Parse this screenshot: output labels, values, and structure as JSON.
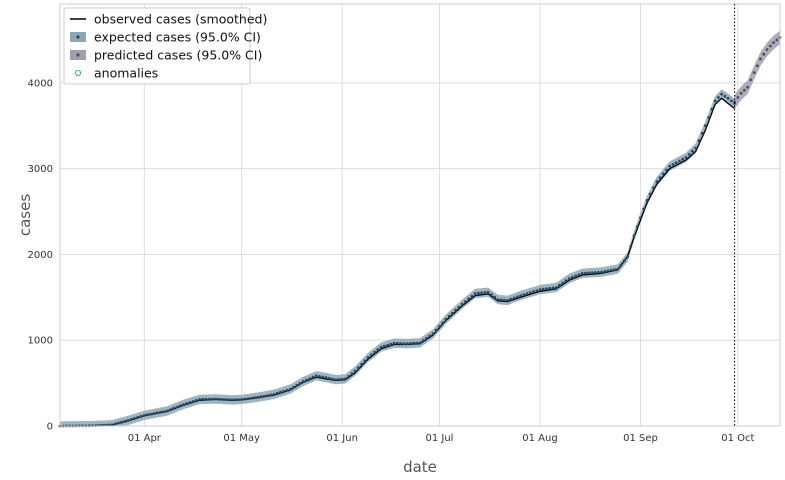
{
  "chart_data": {
    "type": "line",
    "xlabel": "date",
    "ylabel": "cases",
    "xlim": [
      "2020-03-06",
      "2020-10-14"
    ],
    "ylim": [
      0,
      4920
    ],
    "x_ticks": [
      {
        "date": "2020-04-01",
        "label": "01 Apr"
      },
      {
        "date": "2020-05-01",
        "label": "01 May"
      },
      {
        "date": "2020-06-01",
        "label": "01 Jun"
      },
      {
        "date": "2020-07-01",
        "label": "01 Jul"
      },
      {
        "date": "2020-08-01",
        "label": "01 Aug"
      },
      {
        "date": "2020-09-01",
        "label": "01 Sep"
      },
      {
        "date": "2020-10-01",
        "label": "01 Oct"
      }
    ],
    "y_ticks": [
      0,
      1000,
      2000,
      3000,
      4000
    ],
    "grid": true,
    "legend_position": "top-left",
    "legend": [
      {
        "label": "observed cases (smoothed)",
        "style": "line",
        "color": "#000000"
      },
      {
        "label": "expected cases (95.0% CI)",
        "style": "band",
        "color": "#8fa8b8",
        "marker": "#2c4a5c"
      },
      {
        "label": "predicted cases (95.0% CI)",
        "style": "band",
        "color": "#9ea0ad",
        "marker": "#6b3f60"
      },
      {
        "label": "anomalies",
        "style": "circle",
        "color": "#4aa3a3"
      }
    ],
    "cutoff_date": "2020-09-30",
    "series": [
      {
        "name": "observed cases (smoothed)",
        "color": "#000000",
        "points": [
          [
            "2020-03-06",
            0
          ],
          [
            "2020-03-15",
            2
          ],
          [
            "2020-03-22",
            12
          ],
          [
            "2020-03-27",
            60
          ],
          [
            "2020-04-01",
            120
          ],
          [
            "2020-04-08",
            170
          ],
          [
            "2020-04-13",
            240
          ],
          [
            "2020-04-18",
            300
          ],
          [
            "2020-04-23",
            310
          ],
          [
            "2020-04-28",
            300
          ],
          [
            "2020-05-01",
            305
          ],
          [
            "2020-05-06",
            330
          ],
          [
            "2020-05-11",
            360
          ],
          [
            "2020-05-16",
            420
          ],
          [
            "2020-05-20",
            510
          ],
          [
            "2020-05-24",
            570
          ],
          [
            "2020-05-27",
            550
          ],
          [
            "2020-05-30",
            530
          ],
          [
            "2020-06-02",
            540
          ],
          [
            "2020-06-05",
            620
          ],
          [
            "2020-06-09",
            780
          ],
          [
            "2020-06-13",
            900
          ],
          [
            "2020-06-17",
            950
          ],
          [
            "2020-06-21",
            950
          ],
          [
            "2020-06-25",
            960
          ],
          [
            "2020-06-29",
            1060
          ],
          [
            "2020-07-03",
            1230
          ],
          [
            "2020-07-08",
            1400
          ],
          [
            "2020-07-12",
            1520
          ],
          [
            "2020-07-16",
            1540
          ],
          [
            "2020-07-19",
            1460
          ],
          [
            "2020-07-22",
            1450
          ],
          [
            "2020-07-26",
            1500
          ],
          [
            "2020-08-01",
            1570
          ],
          [
            "2020-08-06",
            1600
          ],
          [
            "2020-08-10",
            1700
          ],
          [
            "2020-08-14",
            1760
          ],
          [
            "2020-08-20",
            1780
          ],
          [
            "2020-08-25",
            1820
          ],
          [
            "2020-08-28",
            1980
          ],
          [
            "2020-08-30",
            2200
          ],
          [
            "2020-09-01",
            2400
          ],
          [
            "2020-09-03",
            2600
          ],
          [
            "2020-09-06",
            2820
          ],
          [
            "2020-09-10",
            3000
          ],
          [
            "2020-09-15",
            3100
          ],
          [
            "2020-09-18",
            3200
          ],
          [
            "2020-09-21",
            3450
          ],
          [
            "2020-09-24",
            3750
          ],
          [
            "2020-09-26",
            3820
          ],
          [
            "2020-09-28",
            3760
          ],
          [
            "2020-09-30",
            3700
          ]
        ]
      },
      {
        "name": "expected cases (95.0% CI)",
        "color": "#2c4a5c",
        "band_color": "#8fa8b8",
        "band_halfwidth": 55,
        "points": [
          [
            "2020-03-06",
            0
          ],
          [
            "2020-03-15",
            3
          ],
          [
            "2020-03-22",
            14
          ],
          [
            "2020-03-27",
            65
          ],
          [
            "2020-04-01",
            125
          ],
          [
            "2020-04-08",
            175
          ],
          [
            "2020-04-13",
            250
          ],
          [
            "2020-04-18",
            310
          ],
          [
            "2020-04-23",
            315
          ],
          [
            "2020-04-28",
            305
          ],
          [
            "2020-05-01",
            310
          ],
          [
            "2020-05-06",
            335
          ],
          [
            "2020-05-11",
            370
          ],
          [
            "2020-05-16",
            430
          ],
          [
            "2020-05-20",
            520
          ],
          [
            "2020-05-24",
            585
          ],
          [
            "2020-05-27",
            565
          ],
          [
            "2020-05-30",
            540
          ],
          [
            "2020-06-02",
            550
          ],
          [
            "2020-06-05",
            640
          ],
          [
            "2020-06-09",
            800
          ],
          [
            "2020-06-13",
            920
          ],
          [
            "2020-06-17",
            965
          ],
          [
            "2020-06-21",
            960
          ],
          [
            "2020-06-25",
            970
          ],
          [
            "2020-06-29",
            1075
          ],
          [
            "2020-07-03",
            1245
          ],
          [
            "2020-07-08",
            1420
          ],
          [
            "2020-07-12",
            1545
          ],
          [
            "2020-07-16",
            1560
          ],
          [
            "2020-07-19",
            1475
          ],
          [
            "2020-07-22",
            1465
          ],
          [
            "2020-07-26",
            1520
          ],
          [
            "2020-08-01",
            1590
          ],
          [
            "2020-08-06",
            1615
          ],
          [
            "2020-08-10",
            1720
          ],
          [
            "2020-08-14",
            1780
          ],
          [
            "2020-08-20",
            1795
          ],
          [
            "2020-08-25",
            1830
          ],
          [
            "2020-08-28",
            1970
          ],
          [
            "2020-08-30",
            2220
          ],
          [
            "2020-09-01",
            2430
          ],
          [
            "2020-09-03",
            2630
          ],
          [
            "2020-09-06",
            2850
          ],
          [
            "2020-09-10",
            3030
          ],
          [
            "2020-09-15",
            3130
          ],
          [
            "2020-09-18",
            3240
          ],
          [
            "2020-09-21",
            3500
          ],
          [
            "2020-09-24",
            3790
          ],
          [
            "2020-09-26",
            3870
          ],
          [
            "2020-09-28",
            3820
          ],
          [
            "2020-09-30",
            3760
          ]
        ]
      },
      {
        "name": "predicted cases (95.0% CI)",
        "color": "#6b3f60",
        "band_color": "#9ea0ad",
        "band_halfwidth": 80,
        "points": [
          [
            "2020-09-30",
            3780
          ],
          [
            "2020-10-02",
            3880
          ],
          [
            "2020-10-04",
            3950
          ],
          [
            "2020-10-06",
            4120
          ],
          [
            "2020-10-08",
            4280
          ],
          [
            "2020-10-10",
            4390
          ],
          [
            "2020-10-12",
            4470
          ],
          [
            "2020-10-14",
            4530
          ]
        ]
      }
    ]
  }
}
